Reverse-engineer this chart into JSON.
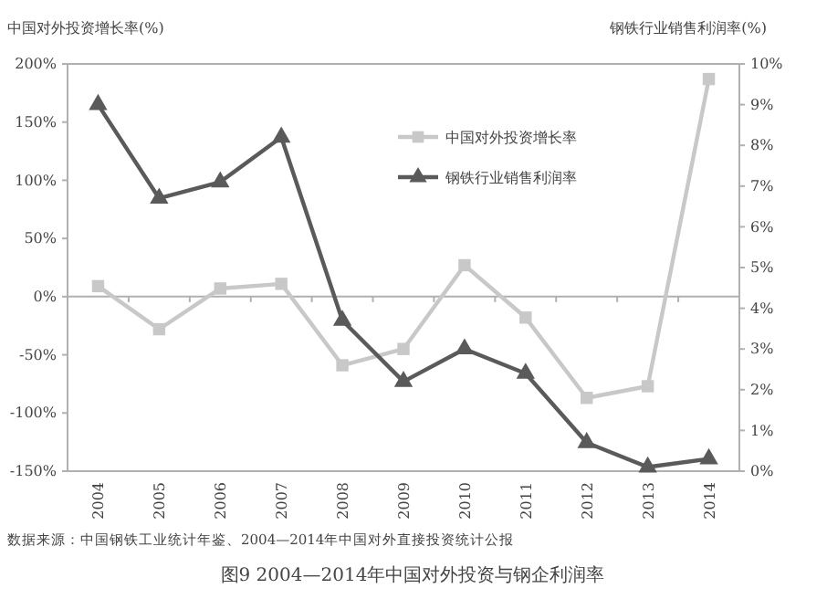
{
  "chart_data": {
    "type": "line",
    "title": "图9 2004—2014年中国对外投资与钢企利润率",
    "ylabel": "中国对外投资增长率(%)",
    "y2label": "钢铁行业销售利润率(%)",
    "categories": [
      "2004",
      "2005",
      "2006",
      "2007",
      "2008",
      "2009",
      "2010",
      "2011",
      "2012",
      "2013",
      "2014"
    ],
    "series": [
      {
        "name": "中国对外投资增长率",
        "color": "#c8c8c8",
        "marker": "square",
        "values": [
          9,
          -28,
          7,
          11,
          -59,
          -45,
          27,
          -18,
          -87,
          -77,
          187
        ]
      },
      {
        "name": "钢铁行业销售利润率",
        "color": "#5a5a5a",
        "marker": "triangle",
        "axis": "y2",
        "values": [
          9.0,
          6.7,
          7.1,
          8.2,
          3.7,
          2.2,
          3.0,
          2.4,
          0.7,
          0.1,
          0.3
        ]
      }
    ],
    "ylim": [
      -150,
      200
    ],
    "yticks": [
      {
        "value": -150,
        "label": "-150%"
      },
      {
        "value": -100,
        "label": "-100%"
      },
      {
        "value": -50,
        "label": "-50%"
      },
      {
        "value": 0,
        "label": "0%"
      },
      {
        "value": 50,
        "label": "50%"
      },
      {
        "value": 100,
        "label": "100%"
      },
      {
        "value": 150,
        "label": "150%"
      },
      {
        "value": 200,
        "label": "200%"
      }
    ],
    "y2lim": [
      0,
      10
    ],
    "y2ticks": [
      {
        "value": 0,
        "label": "0%"
      },
      {
        "value": 1,
        "label": "1%"
      },
      {
        "value": 2,
        "label": "2%"
      },
      {
        "value": 3,
        "label": "3%"
      },
      {
        "value": 4,
        "label": "4%"
      },
      {
        "value": 5,
        "label": "5%"
      },
      {
        "value": 6,
        "label": "6%"
      },
      {
        "value": 7,
        "label": "7%"
      },
      {
        "value": 8,
        "label": "8%"
      },
      {
        "value": 9,
        "label": "9%"
      },
      {
        "value": 10,
        "label": "10%"
      }
    ],
    "legend": "top right",
    "line_style": "solid",
    "annotations": [
      "数据来源：中国钢铁工业统计年鉴、2004—2014年中国对外直接投资统计公报"
    ]
  }
}
